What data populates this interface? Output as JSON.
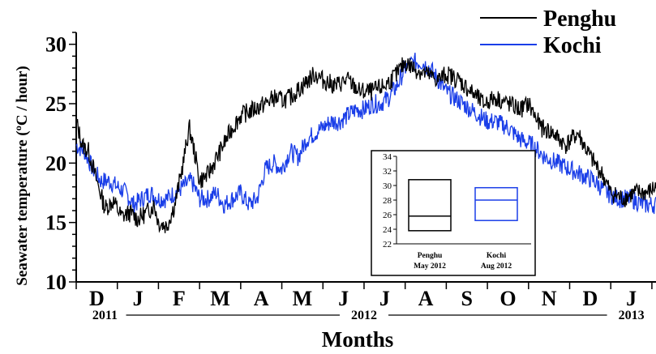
{
  "chart_data": {
    "type": "line",
    "ylabel": "Seawater temperature (ºC / hour)",
    "xlabel": "Months",
    "ylim": [
      10,
      31
    ],
    "y_ticks": [
      10,
      15,
      20,
      25,
      30
    ],
    "month_labels": [
      "D",
      "J",
      "F",
      "M",
      "A",
      "M",
      "J",
      "J",
      "A",
      "S",
      "O",
      "N",
      "D",
      "J"
    ],
    "year_labels": [
      "2011",
      "2012",
      "2013"
    ],
    "legend_position": "top-right",
    "series": [
      {
        "name": "Penghu",
        "color": "#000000",
        "x": [
          0,
          0.15,
          0.3,
          0.5,
          0.7,
          0.9,
          1.1,
          1.3,
          1.5,
          1.7,
          1.9,
          2.0,
          2.2,
          2.4,
          2.6,
          2.75,
          2.9,
          3.0,
          3.2,
          3.5,
          3.8,
          4.0,
          4.3,
          4.6,
          4.8,
          5.0,
          5.2,
          5.5,
          5.8,
          6.0,
          6.3,
          6.6,
          6.9,
          7.2,
          7.5,
          7.8,
          8.0,
          8.2,
          8.5,
          8.8,
          9.0,
          9.3,
          9.6,
          9.9,
          10.2,
          10.5,
          10.8,
          11.0,
          11.3,
          11.6,
          11.9,
          12.2,
          12.5,
          12.8,
          13.0,
          13.3,
          13.6,
          13.9,
          14.1
        ],
        "y": [
          23.5,
          21.5,
          21.0,
          18.5,
          16.2,
          16.8,
          15.5,
          15.8,
          15.3,
          15.8,
          16.5,
          15.0,
          14.7,
          16.5,
          20.0,
          23.0,
          20.5,
          18.5,
          19.0,
          21.0,
          23.0,
          24.0,
          24.5,
          25.0,
          25.5,
          25.3,
          25.5,
          26.5,
          27.5,
          27.0,
          26.5,
          27.0,
          26.0,
          26.0,
          26.5,
          27.5,
          28.5,
          28.0,
          27.5,
          27.0,
          27.5,
          27.0,
          26.0,
          25.0,
          25.5,
          25.0,
          24.5,
          25.0,
          23.0,
          22.5,
          21.5,
          22.5,
          20.5,
          19.0,
          17.5,
          17.0,
          17.5,
          17.5,
          18.0
        ]
      },
      {
        "name": "Kochi",
        "color": "#1a3ee8",
        "x": [
          0,
          0.2,
          0.4,
          0.6,
          0.8,
          1.0,
          1.2,
          1.4,
          1.6,
          1.8,
          2.0,
          2.2,
          2.4,
          2.6,
          2.8,
          3.0,
          3.2,
          3.4,
          3.6,
          3.8,
          4.0,
          4.2,
          4.4,
          4.6,
          4.8,
          5.0,
          5.2,
          5.4,
          5.6,
          5.8,
          6.0,
          6.2,
          6.4,
          6.6,
          6.8,
          7.0,
          7.2,
          7.4,
          7.6,
          7.8,
          8.0,
          8.2,
          8.4,
          8.6,
          8.8,
          9.0,
          9.2,
          9.4,
          9.6,
          9.8,
          10.0,
          10.2,
          10.5,
          10.8,
          11.1,
          11.4,
          11.7,
          12.0,
          12.3,
          12.6,
          12.9,
          13.2,
          13.5,
          13.8,
          14.1
        ],
        "y": [
          21.5,
          21.0,
          19.5,
          18.5,
          18.5,
          18.0,
          17.5,
          16.5,
          17.0,
          17.5,
          17.0,
          17.0,
          17.5,
          18.0,
          18.5,
          17.0,
          17.0,
          17.5,
          16.5,
          17.0,
          17.5,
          16.5,
          17.0,
          19.5,
          20.0,
          19.5,
          21.0,
          20.5,
          22.0,
          22.5,
          23.0,
          23.5,
          23.5,
          24.0,
          24.5,
          24.5,
          25.0,
          25.0,
          25.5,
          26.5,
          28.0,
          28.5,
          28.5,
          28.0,
          27.0,
          26.0,
          25.5,
          25.0,
          24.5,
          24.0,
          23.5,
          23.5,
          23.0,
          22.0,
          21.5,
          20.5,
          20.0,
          19.5,
          19.0,
          18.5,
          17.5,
          17.0,
          17.0,
          16.5,
          16.5
        ]
      }
    ],
    "inset": {
      "type": "boxplot",
      "ylim": [
        22,
        34
      ],
      "y_ticks": [
        22,
        24,
        26,
        28,
        30,
        32,
        34
      ],
      "boxes": [
        {
          "label": "Penghu",
          "sublabel": "May 2012",
          "color": "#000000",
          "low": 23.8,
          "median": 25.8,
          "high": 30.8
        },
        {
          "label": "Kochi",
          "sublabel": "Aug 2012",
          "color": "#1a3ee8",
          "low": 25.2,
          "median": 28.0,
          "high": 29.7
        }
      ]
    }
  }
}
